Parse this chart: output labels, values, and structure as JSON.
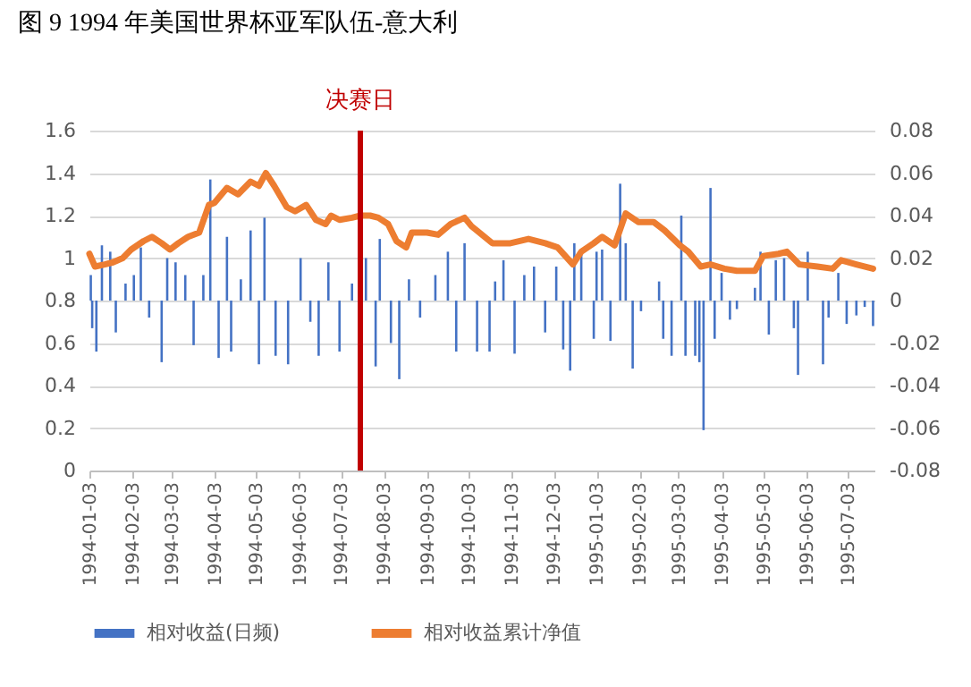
{
  "chart_data": {
    "type": "bar",
    "title": "图 9 1994 年美国世界杯亚军队伍-意大利",
    "xlim": [
      "1994-01-03",
      "1995-07-22"
    ],
    "xticks": [
      "1994-01-03",
      "1994-02-03",
      "1994-03-03",
      "1994-04-03",
      "1994-05-03",
      "1994-06-03",
      "1994-07-03",
      "1994-08-03",
      "1994-09-03",
      "1994-10-03",
      "1994-11-03",
      "1994-12-03",
      "1995-01-03",
      "1995-02-03",
      "1995-03-03",
      "1995-04-03",
      "1995-05-03",
      "1995-06-03",
      "1995-07-03"
    ],
    "ylim": [
      0,
      1.6
    ],
    "yticks": [
      0,
      0.2,
      0.4,
      0.6,
      0.8,
      1,
      1.2,
      1.4,
      1.6
    ],
    "y2lim": [
      -0.08,
      0.08
    ],
    "y2ticks": [
      -0.08,
      -0.06,
      -0.04,
      -0.02,
      0,
      0.02,
      0.04,
      0.06,
      0.08
    ],
    "grid": "y",
    "legend": "bottom",
    "marker": "none",
    "line_style": "solid",
    "ref_lines": [
      {
        "axis": "x",
        "value": "1994-07-17",
        "label": "决赛日",
        "color": "#c00000"
      }
    ],
    "series": [
      {
        "name": "相对收益(日频)",
        "axis": "y2",
        "color": "#4472c4",
        "x": [
          "1994-01-04",
          "1994-01-05",
          "1994-01-08",
          "1994-01-12",
          "1994-01-18",
          "1994-01-22",
          "1994-01-29",
          "1994-02-04",
          "1994-02-09",
          "1994-02-15",
          "1994-02-24",
          "1994-02-28",
          "1994-03-06",
          "1994-03-13",
          "1994-03-19",
          "1994-03-26",
          "1994-03-31",
          "1994-04-06",
          "1994-04-12",
          "1994-04-15",
          "1994-04-22",
          "1994-04-29",
          "1994-05-05",
          "1994-05-09",
          "1994-05-17",
          "1994-05-26",
          "1994-06-04",
          "1994-06-11",
          "1994-06-17",
          "1994-06-24",
          "1994-07-02",
          "1994-07-11",
          "1994-07-21",
          "1994-07-28",
          "1994-07-31",
          "1994-08-08",
          "1994-08-14",
          "1994-08-21",
          "1994-08-29",
          "1994-09-09",
          "1994-09-18",
          "1994-09-24",
          "1994-09-30",
          "1994-10-09",
          "1994-10-18",
          "1994-10-22",
          "1994-10-28",
          "1994-11-05",
          "1994-11-12",
          "1994-11-19",
          "1994-11-27",
          "1994-12-05",
          "1994-12-10",
          "1994-12-15",
          "1994-12-18",
          "1994-12-23",
          "1995-01-01",
          "1995-01-03",
          "1995-01-07",
          "1995-01-13",
          "1995-01-20",
          "1995-01-24",
          "1995-01-29",
          "1995-02-04",
          "1995-02-17",
          "1995-02-20",
          "1995-02-26",
          "1995-03-05",
          "1995-03-08",
          "1995-03-15",
          "1995-03-18",
          "1995-03-21",
          "1995-03-26",
          "1995-03-29",
          "1995-04-03",
          "1995-04-09",
          "1995-04-14",
          "1995-04-27",
          "1995-05-01",
          "1995-05-07",
          "1995-05-12",
          "1995-05-18",
          "1995-05-25",
          "1995-05-28",
          "1995-06-04",
          "1995-06-15",
          "1995-06-19",
          "1995-06-26",
          "1995-07-02",
          "1995-07-09",
          "1995-07-15",
          "1995-07-21"
        ],
        "values": [
          0.012,
          -0.013,
          -0.024,
          0.026,
          0.023,
          -0.015,
          0.008,
          0.012,
          0.025,
          -0.008,
          -0.029,
          0.02,
          0.018,
          0.012,
          -0.021,
          0.012,
          0.057,
          -0.027,
          0.03,
          -0.024,
          0.01,
          0.033,
          -0.03,
          0.039,
          -0.026,
          -0.03,
          0.02,
          -0.01,
          -0.026,
          0.018,
          -0.024,
          0.008,
          0.02,
          -0.031,
          0.029,
          -0.02,
          -0.037,
          0.01,
          -0.008,
          0.012,
          0.023,
          -0.024,
          0.027,
          -0.024,
          -0.024,
          0.009,
          0.019,
          -0.025,
          0.012,
          0.016,
          -0.015,
          0.016,
          -0.023,
          -0.033,
          0.027,
          0.022,
          -0.018,
          0.023,
          0.024,
          -0.019,
          0.055,
          0.027,
          -0.032,
          -0.005,
          0.009,
          -0.018,
          -0.026,
          0.04,
          -0.026,
          -0.026,
          -0.029,
          -0.061,
          0.053,
          -0.018,
          0.013,
          -0.009,
          -0.004,
          0.006,
          0.023,
          -0.016,
          0.019,
          0.02,
          -0.013,
          -0.035,
          0.023,
          -0.03,
          -0.008,
          0.013,
          -0.011,
          -0.007,
          -0.003,
          -0.012
        ]
      },
      {
        "name": "相对收益累计净值",
        "color": "#ed7d31",
        "type": "line",
        "x": [
          "1994-01-03",
          "1994-01-07",
          "1994-01-14",
          "1994-01-20",
          "1994-01-27",
          "1994-02-02",
          "1994-02-11",
          "1994-02-17",
          "1994-02-24",
          "1994-03-02",
          "1994-03-08",
          "1994-03-15",
          "1994-03-23",
          "1994-03-30",
          "1994-04-03",
          "1994-04-12",
          "1994-04-20",
          "1994-04-29",
          "1994-05-05",
          "1994-05-10",
          "1994-05-16",
          "1994-05-25",
          "1994-05-31",
          "1994-06-08",
          "1994-06-15",
          "1994-06-22",
          "1994-06-26",
          "1994-07-02",
          "1994-07-11",
          "1994-07-17",
          "1994-07-24",
          "1994-07-30",
          "1994-08-06",
          "1994-08-12",
          "1994-08-19",
          "1994-08-23",
          "1994-09-03",
          "1994-09-11",
          "1994-09-20",
          "1994-09-30",
          "1994-10-05",
          "1994-10-20",
          "1994-11-02",
          "1994-11-15",
          "1994-11-27",
          "1994-12-06",
          "1994-12-17",
          "1994-12-23",
          "1995-01-01",
          "1995-01-07",
          "1995-01-16",
          "1995-01-24",
          "1995-02-02",
          "1995-02-13",
          "1995-02-21",
          "1995-03-04",
          "1995-03-10",
          "1995-03-19",
          "1995-03-26",
          "1995-04-05",
          "1995-04-14",
          "1995-04-27",
          "1995-05-03",
          "1995-05-14",
          "1995-05-20",
          "1995-05-29",
          "1995-06-11",
          "1995-06-22",
          "1995-06-28",
          "1995-07-09",
          "1995-07-21"
        ],
        "values": [
          1.02,
          0.96,
          0.97,
          0.98,
          1.0,
          1.04,
          1.08,
          1.1,
          1.07,
          1.04,
          1.07,
          1.1,
          1.12,
          1.25,
          1.26,
          1.33,
          1.3,
          1.36,
          1.34,
          1.4,
          1.34,
          1.24,
          1.22,
          1.25,
          1.18,
          1.16,
          1.2,
          1.18,
          1.19,
          1.2,
          1.2,
          1.19,
          1.16,
          1.08,
          1.05,
          1.12,
          1.12,
          1.11,
          1.16,
          1.19,
          1.15,
          1.07,
          1.07,
          1.09,
          1.07,
          1.05,
          0.97,
          1.03,
          1.07,
          1.1,
          1.06,
          1.21,
          1.17,
          1.17,
          1.13,
          1.06,
          1.03,
          0.96,
          0.97,
          0.95,
          0.94,
          0.94,
          1.01,
          1.02,
          1.03,
          0.97,
          0.96,
          0.95,
          0.99,
          0.97,
          0.95
        ]
      }
    ]
  }
}
